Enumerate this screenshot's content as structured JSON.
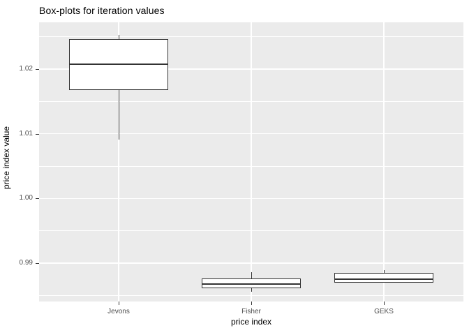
{
  "title": "Box-plots for iteration values",
  "chart_data": {
    "type": "boxplot",
    "title": "Box-plots for iteration values",
    "xlabel": "price index",
    "ylabel": "price index value",
    "categories": [
      "Jevons",
      "Fisher",
      "GEKS"
    ],
    "series": [
      {
        "name": "Jevons",
        "min": 1.0091,
        "q1": 1.0168,
        "median": 1.0207,
        "q3": 1.0246,
        "max": 1.0253
      },
      {
        "name": "Fisher",
        "min": 0.9856,
        "q1": 0.9861,
        "median": 0.9868,
        "q3": 0.9877,
        "max": 0.9886
      },
      {
        "name": "GEKS",
        "min": 0.987,
        "q1": 0.987,
        "median": 0.9875,
        "q3": 0.9885,
        "max": 0.989
      }
    ],
    "ylim": [
      0.9841,
      1.0272
    ],
    "y_major_ticks": [
      0.99,
      1.0,
      1.01,
      1.02
    ],
    "y_tick_labels": [
      "0.99",
      "1.00",
      "1.01",
      "1.02"
    ],
    "y_minor_ticks": [
      0.985,
      0.995,
      1.005,
      1.015,
      1.025
    ],
    "grid": true,
    "legend_position": "none",
    "panel_background": "#EBEBEB",
    "grid_color": "#FFFFFF",
    "box_stroke_color": "#333333",
    "box_fill_color": "#FFFFFF",
    "tick_label_color": "#4D4D4D",
    "title_color": "#000000"
  }
}
